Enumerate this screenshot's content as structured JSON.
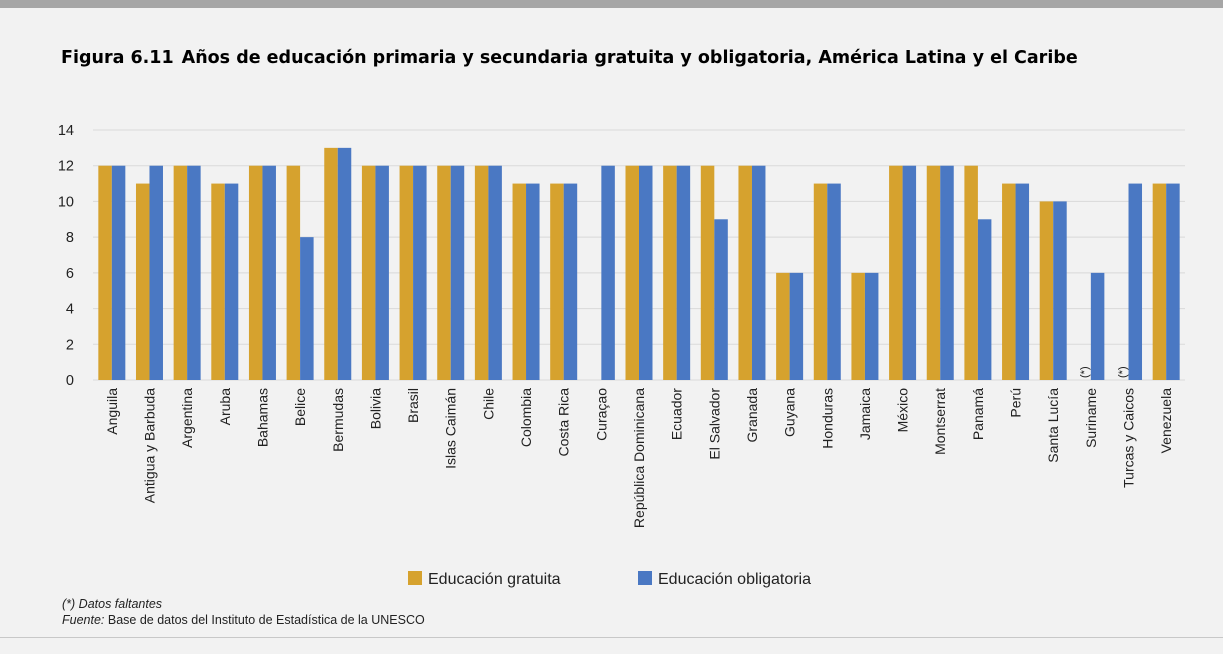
{
  "figure": {
    "number": "Figura 6.11",
    "title": "Años de educación primaria y secundaria gratuita y obligatoria, América Latina y el Caribe"
  },
  "notes": {
    "missing": "(*) Datos faltantes",
    "source_label": "Fuente:",
    "source_text": "Base de datos del Instituto de Estadística de la UNESCO"
  },
  "colors": {
    "gratuita": "#d6a22e",
    "obligatoria": "#4a78c3",
    "grid": "#d9d9d9",
    "background": "#f2f2f2"
  },
  "chart_data": {
    "type": "bar",
    "title": "Años de educación primaria y secundaria gratuita y obligatoria, América Latina y el Caribe",
    "xlabel": "",
    "ylabel": "",
    "ylim": [
      0,
      14
    ],
    "yticks": [
      0,
      2,
      4,
      6,
      8,
      10,
      12,
      14
    ],
    "grid": true,
    "legend_position": "bottom",
    "categories": [
      "Anguila",
      "Antigua y Barbuda",
      "Argentina",
      "Aruba",
      "Bahamas",
      "Belice",
      "Bermudas",
      "Bolivia",
      "Brasil",
      "Islas Caimán",
      "Chile",
      "Colombia",
      "Costa Rica",
      "Curaçao",
      "República Dominicana",
      "Ecuador",
      "El Salvador",
      "Granada",
      "Guyana",
      "Honduras",
      "Jamaica",
      "México",
      "Montserrat",
      "Panamá",
      "Perú",
      "Santa Lucía",
      "Suriname",
      "Turcas y Caicos",
      "Venezuela"
    ],
    "series": [
      {
        "name": "Educación gratuita",
        "values": [
          12,
          11,
          12,
          11,
          12,
          12,
          13,
          12,
          12,
          12,
          12,
          11,
          11,
          0,
          12,
          12,
          12,
          12,
          6,
          11,
          6,
          12,
          12,
          12,
          11,
          10,
          null,
          null,
          11
        ]
      },
      {
        "name": "Educación obligatoria",
        "values": [
          12,
          12,
          12,
          11,
          12,
          8,
          13,
          12,
          12,
          12,
          12,
          11,
          11,
          12,
          12,
          12,
          9,
          12,
          6,
          11,
          6,
          12,
          12,
          9,
          11,
          10,
          6,
          11,
          11
        ]
      }
    ],
    "missing_marker": "(*)"
  }
}
